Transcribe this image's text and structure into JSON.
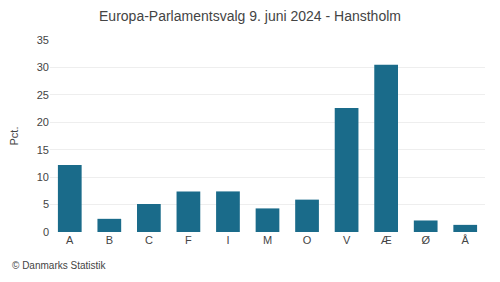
{
  "chart_data": {
    "type": "bar",
    "title": "Europa-Parlamentsvalg 9. juni 2024 - Hanstholm",
    "categories": [
      "A",
      "B",
      "C",
      "F",
      "I",
      "M",
      "O",
      "V",
      "Æ",
      "Ø",
      "Å"
    ],
    "values": [
      12.2,
      2.4,
      5.1,
      7.4,
      7.4,
      4.3,
      5.9,
      22.6,
      30.5,
      2.1,
      1.3
    ],
    "color": "#1a6b8a",
    "ylabel": "Pct.",
    "ylim": [
      0,
      35
    ],
    "yticks": [
      0,
      5,
      10,
      15,
      20,
      25,
      30,
      35
    ],
    "grid": true,
    "annotations": [
      "© Danmarks Statistik"
    ]
  }
}
